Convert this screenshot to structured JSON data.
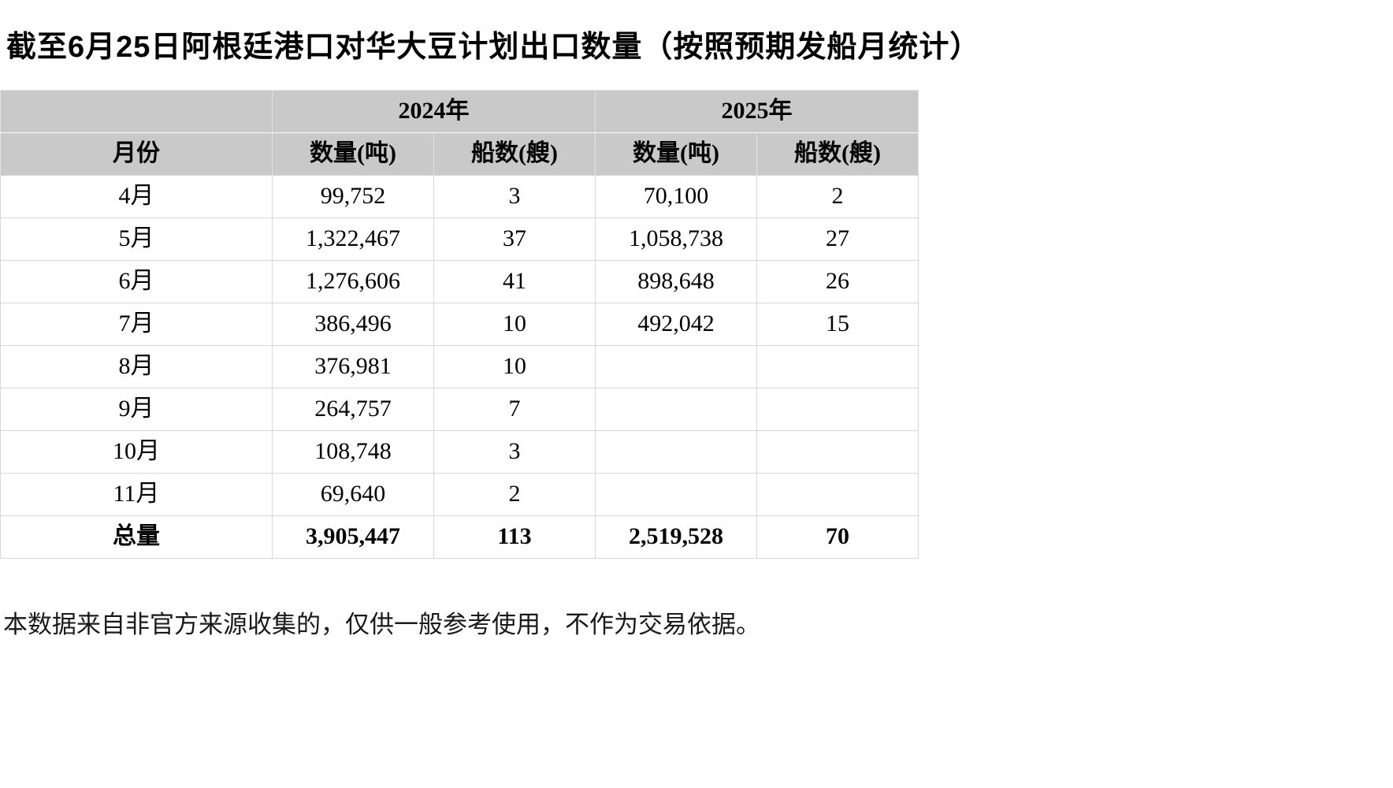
{
  "title": "截至6月25日阿根廷港口对华大豆计划出口数量（按照预期发船月统计）",
  "footnote": "本数据来自非官方来源收集的，仅供一般参考使用，不作为交易依据。",
  "colors": {
    "header_bg": "#c9c9c9",
    "border": "#d6d6d6",
    "text": "#000000"
  },
  "chart_data": {
    "type": "table",
    "title": "截至6月25日阿根廷港口对华大豆计划出口数量（按照预期发船月统计）",
    "year_groups": [
      "2024年",
      "2025年"
    ],
    "columns": [
      "月份",
      "数量(吨)",
      "船数(艘)",
      "数量(吨)",
      "船数(艘)"
    ],
    "rows": [
      [
        "4月",
        "99,752",
        "3",
        "70,100",
        "2"
      ],
      [
        "5月",
        "1,322,467",
        "37",
        "1,058,738",
        "27"
      ],
      [
        "6月",
        "1,276,606",
        "41",
        "898,648",
        "26"
      ],
      [
        "7月",
        "386,496",
        "10",
        "492,042",
        "15"
      ],
      [
        "8月",
        "376,981",
        "10",
        "",
        ""
      ],
      [
        "9月",
        "264,757",
        "7",
        "",
        ""
      ],
      [
        "10月",
        "108,748",
        "3",
        "",
        ""
      ],
      [
        "11月",
        "69,640",
        "2",
        "",
        ""
      ]
    ],
    "total_row": [
      "总量",
      "3,905,447",
      "113",
      "2,519,528",
      "70"
    ]
  }
}
